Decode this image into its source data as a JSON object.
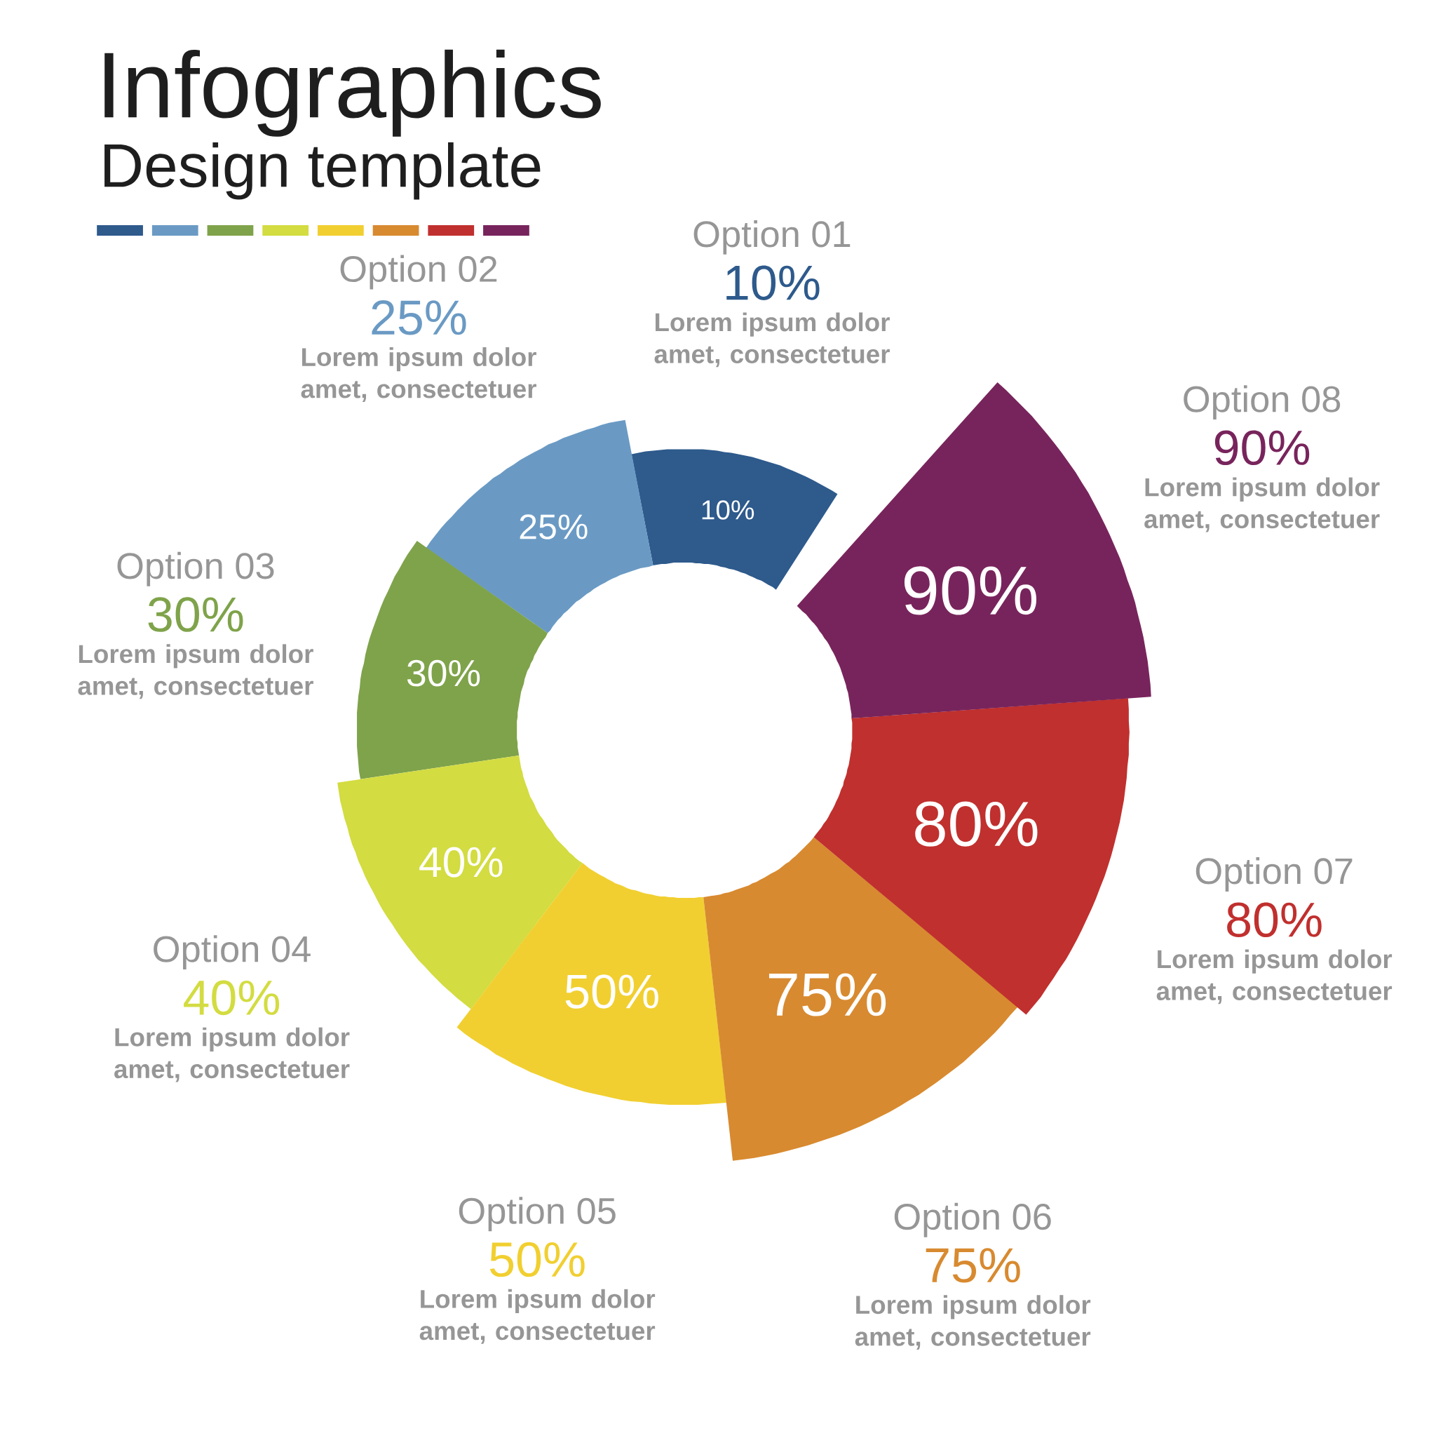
{
  "chart_data": {
    "type": "other",
    "title": "Infographics",
    "subtitle": "Design template",
    "categories": [
      "Option 01",
      "Option 02",
      "Option 03",
      "Option 04",
      "Option 05",
      "Option 06",
      "Option 07",
      "Option 08"
    ],
    "values": [
      10,
      25,
      30,
      40,
      50,
      75,
      80,
      90
    ],
    "colors": [
      "#2e5a8c",
      "#6a9ac4",
      "#7fa34a",
      "#d3dc40",
      "#f1cf30",
      "#d88a30",
      "#c0302e",
      "#78245c"
    ],
    "value_labels": [
      "10%",
      "25%",
      "30%",
      "40%",
      "50%",
      "75%",
      "80%",
      "90%"
    ],
    "annotations": [
      "Lorem ipsum dolor amet, consectetuer",
      "Lorem ipsum dolor amet, consectetuer",
      "Lorem ipsum dolor amet, consectetuer",
      "Lorem ipsum dolor amet, consectetuer",
      "Lorem ipsum dolor amet, consectetuer",
      "Lorem ipsum dolor amet, consectetuer",
      "Lorem ipsum dolor amet, consectetuer",
      "Lorem ipsum dolor amet, consectetuer"
    ]
  }
}
